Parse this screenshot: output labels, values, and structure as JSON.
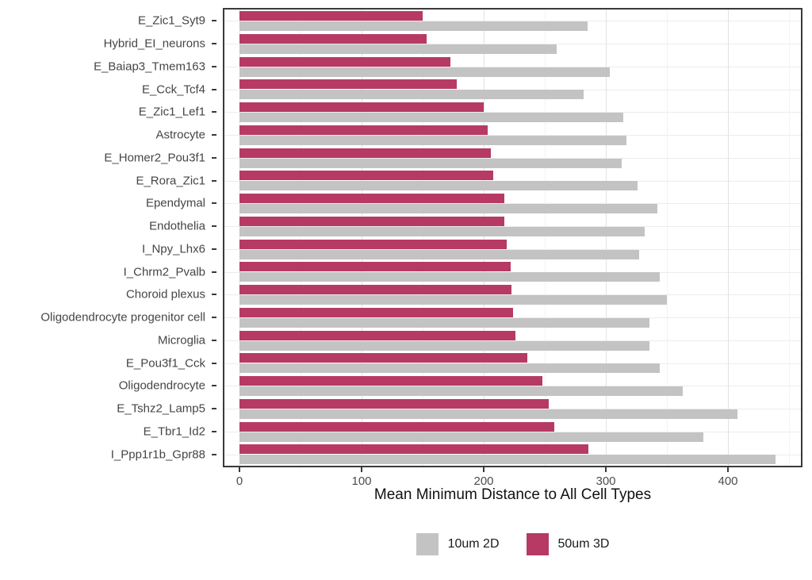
{
  "chart_data": {
    "type": "bar",
    "orientation": "horizontal",
    "title": "",
    "xlabel": "Mean Minimum Distance to All Cell Types",
    "ylabel": "",
    "xlim": [
      0,
      460
    ],
    "x_ticks": [
      0,
      100,
      200,
      300,
      400
    ],
    "x_tick_labels": [
      "0",
      "100",
      "200",
      "300",
      "400"
    ],
    "x_minor_gridlines": [
      50,
      150,
      250,
      350,
      450
    ],
    "grid": true,
    "legend_position": "bottom",
    "categories": [
      "E_Zic1_Syt9",
      "Hybrid_EI_neurons",
      "E_Baiap3_Tmem163",
      "E_Cck_Tcf4",
      "E_Zic1_Lef1",
      "Astrocyte",
      "E_Homer2_Pou3f1",
      "E_Rora_Zic1",
      "Ependymal",
      "Endothelia",
      "I_Npy_Lhx6",
      "I_Chrm2_Pvalb",
      "Choroid plexus",
      "Oligodendrocyte progenitor cell",
      "Microglia",
      "E_Pou3f1_Cck",
      "Oligodendrocyte",
      "E_Tshz2_Lamp5",
      "E_Tbr1_Id2",
      "I_Ppp1r1b_Gpr88"
    ],
    "series": [
      {
        "name": "10um 2D",
        "color": "#c3c3c3",
        "values": [
          285,
          260,
          303,
          282,
          314,
          317,
          313,
          326,
          342,
          332,
          327,
          344,
          350,
          336,
          336,
          344,
          363,
          408,
          380,
          439
        ]
      },
      {
        "name": "50um 3D",
        "color": "#b63a64",
        "values": [
          150,
          153,
          173,
          178,
          200,
          203,
          206,
          208,
          217,
          217,
          219,
          222,
          223,
          224,
          226,
          236,
          248,
          253,
          258,
          286
        ]
      }
    ]
  },
  "colors": {
    "panel_border": "#3a3a3a",
    "major_grid": "#e2e2e2",
    "minor_grid": "#f3f3f3",
    "axis_text": "#4d4d4d"
  }
}
